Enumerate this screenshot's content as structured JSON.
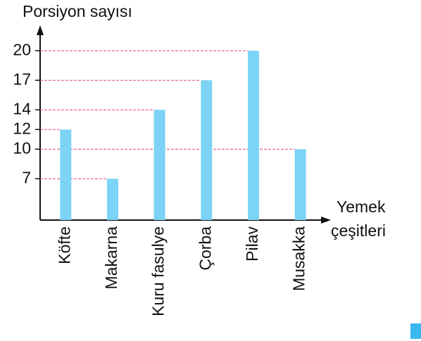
{
  "chart_data": {
    "type": "bar",
    "ylabel": "Porsiyon sayısı",
    "xlabel": [
      "Yemek",
      "çeşitleri"
    ],
    "categories": [
      "Köfte",
      "Makarna",
      "Kuru fasulye",
      "Çorba",
      "Pilav",
      "Musakka"
    ],
    "values": [
      12,
      7,
      14,
      17,
      20,
      10
    ],
    "color": "#7dd3f5",
    "ylim": [
      2.8,
      22.3
    ],
    "yticks": [
      7,
      10,
      12,
      14,
      17,
      20
    ],
    "guide_color": "#e0408a"
  }
}
